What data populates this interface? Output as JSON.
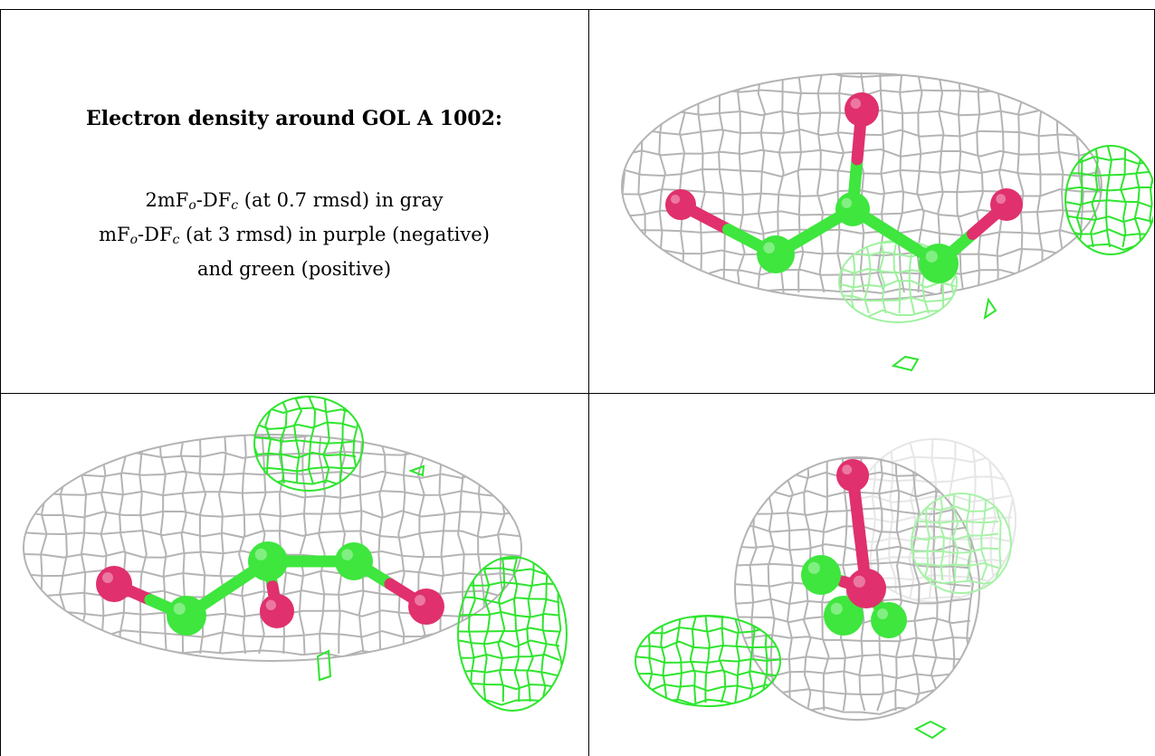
{
  "title": "Electron density around GOL A 1002:",
  "legend": {
    "line1_prefix": "2mF",
    "line1_mid": "-DF",
    "line1_suffix": " (at 0.7 rmsd) in gray",
    "line2_prefix": "mF",
    "line2_mid": "-DF",
    "line2_suffix": " (at 3 rmsd) in purple (negative)",
    "line3": "and green (positive)",
    "sub_o": "o",
    "sub_c": "c"
  },
  "colors": {
    "mesh_gray": "#b4b4b4",
    "mesh_green": "#2ee52e",
    "atom_oxygen": "#e0306e",
    "atom_carbon": "#3ee63e"
  },
  "panels": [
    "view-top-right",
    "view-bottom-left",
    "view-bottom-right"
  ]
}
